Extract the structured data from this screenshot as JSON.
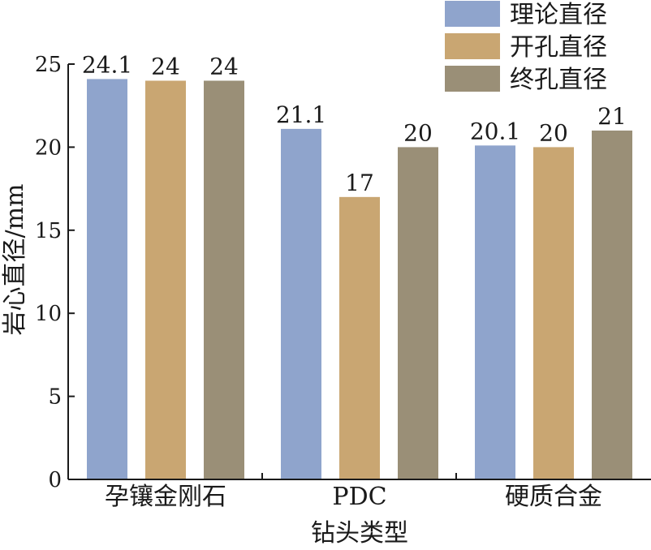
{
  "chart_data": {
    "type": "bar",
    "title": "",
    "xlabel": "钻头类型",
    "ylabel": "岩心直径/mm",
    "categories": [
      "孕镶金刚石",
      "PDC",
      "硬质合金"
    ],
    "series": [
      {
        "name": "理论直径",
        "values": [
          24.1,
          21.1,
          20.1
        ],
        "labels": [
          "24.1",
          "21.1",
          "20.1"
        ],
        "color": "#8FA4CC"
      },
      {
        "name": "开孔直径",
        "values": [
          24,
          17,
          20
        ],
        "labels": [
          "24",
          "17",
          "20"
        ],
        "color": "#C9A672"
      },
      {
        "name": "终孔直径",
        "values": [
          24,
          20,
          21
        ],
        "labels": [
          "24",
          "20",
          "21"
        ],
        "color": "#9A8F77"
      }
    ],
    "ylim": [
      0,
      25
    ],
    "yticks": [
      0,
      5,
      10,
      15,
      20,
      25
    ],
    "grid": false,
    "legend": "top-right"
  }
}
